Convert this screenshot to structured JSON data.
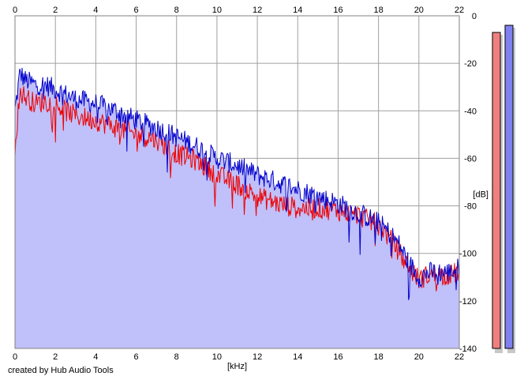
{
  "credit": "created by Hub Audio Tools",
  "colors": {
    "background": "#ffffff",
    "grid": "#a0a0a0",
    "fill": "#c0c0fa",
    "left_channel": "#ee0000",
    "right_channel": "#0000cc",
    "meter_left": "#f08080",
    "meter_right": "#8080f0"
  },
  "chart_data": {
    "type": "line",
    "title": "",
    "xlabel": "[kHz]",
    "ylabel": "[dB]",
    "xlim": [
      0,
      22
    ],
    "ylim": [
      -140,
      0
    ],
    "x_ticks": [
      "0",
      "2",
      "4",
      "6",
      "8",
      "10",
      "12",
      "14",
      "16",
      "18",
      "20",
      "22"
    ],
    "y_ticks": [
      "0",
      "-20",
      "-40",
      "-60",
      "-80",
      "-100",
      "-120",
      "-140"
    ],
    "x_tick_values": [
      0,
      2,
      4,
      6,
      8,
      10,
      12,
      14,
      16,
      18,
      20,
      22
    ],
    "y_tick_values": [
      0,
      -20,
      -40,
      -60,
      -80,
      -100,
      -120,
      -140
    ],
    "grid": true,
    "series": [
      {
        "color": "#0000cc",
        "x": [
          0,
          0.25,
          0.5,
          1,
          1.5,
          2,
          2.5,
          3,
          4,
          5,
          6,
          7,
          8,
          9,
          10,
          11,
          12,
          13,
          14,
          15,
          16,
          17,
          18,
          18.5,
          19,
          19.5,
          20,
          20.5,
          21,
          21.5,
          22
        ],
        "y": [
          -40,
          -24,
          -27,
          -29,
          -29,
          -31,
          -33,
          -35,
          -37,
          -40,
          -44,
          -47,
          -51,
          -55,
          -60,
          -63,
          -67,
          -70,
          -73,
          -76,
          -79,
          -83,
          -87,
          -91,
          -96,
          -104,
          -110,
          -108,
          -108,
          -108,
          -106
        ]
      },
      {
        "color": "#ee0000",
        "x": [
          0,
          0.25,
          0.5,
          1,
          1.5,
          2,
          2.5,
          3,
          4,
          5,
          6,
          7,
          8,
          9,
          10,
          11,
          12,
          13,
          14,
          15,
          16,
          17,
          18,
          18.5,
          19,
          19.5,
          20,
          20.5,
          21,
          21.5,
          22
        ],
        "y": [
          -55,
          -32,
          -34,
          -37,
          -36,
          -37,
          -40,
          -42,
          -44,
          -47,
          -50,
          -52,
          -58,
          -61,
          -67,
          -71,
          -76,
          -79,
          -81,
          -81,
          -82,
          -84,
          -88,
          -93,
          -99,
          -106,
          -111,
          -109,
          -109,
          -109,
          -108
        ]
      }
    ],
    "meters": [
      {
        "color": "#f08080",
        "level": -7
      },
      {
        "color": "#8080f0",
        "level": -4
      }
    ]
  }
}
